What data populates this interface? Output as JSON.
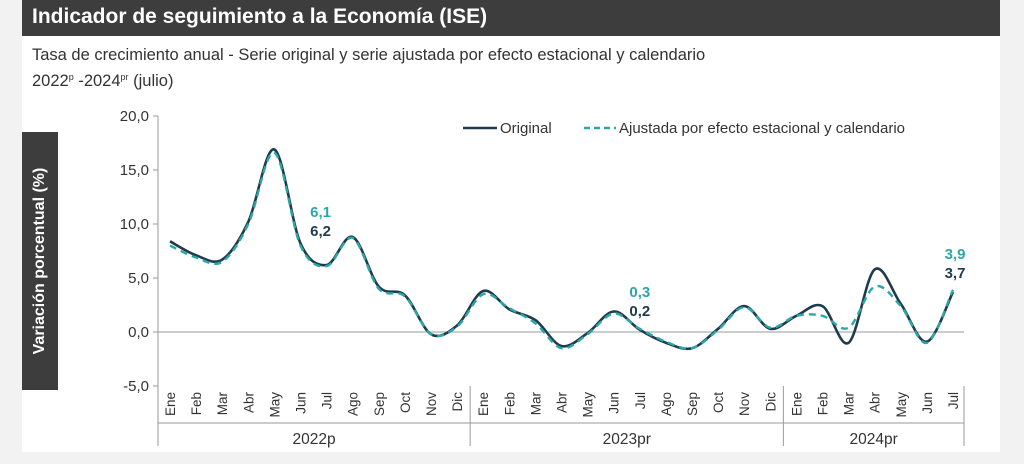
{
  "title": "Indicador de seguimiento a la Economía (ISE)",
  "subtitle": {
    "line1": "Tasa de crecimiento anual - Serie original y serie ajustada por efecto estacional y calendario",
    "line2_a": "2022",
    "line2_a_sup": "p",
    "line2_b": " -2024",
    "line2_b_sup": "pr",
    "line2_c": " (julio)"
  },
  "colors": {
    "original": "#1f3b4d",
    "adjusted": "#2aa8a8",
    "header": "#3d3d3d",
    "grid": "#9a9a9a"
  },
  "chart_data": {
    "type": "line",
    "ylabel": "Variación porcentual (%)",
    "ylim": [
      -5,
      20
    ],
    "yticks": [
      "20,0",
      "15,0",
      "10,0",
      "5,0",
      "0,0",
      "-5,0"
    ],
    "ytick_values": [
      20,
      15,
      10,
      5,
      0,
      -5
    ],
    "categories": [
      "Ene",
      "Feb",
      "Mar",
      "Abr",
      "May",
      "Jun",
      "Jul",
      "Ago",
      "Sep",
      "Oct",
      "Nov",
      "Dic",
      "Ene",
      "Feb",
      "Mar",
      "Abr",
      "May",
      "Jun",
      "Jul",
      "Ago",
      "Sep",
      "Oct",
      "Nov",
      "Dic",
      "Ene",
      "Feb",
      "Mar",
      "Abr",
      "May",
      "Jun",
      "Jul"
    ],
    "year_groups": [
      {
        "label": "2022p",
        "count": 12
      },
      {
        "label": "2023pr",
        "count": 12
      },
      {
        "label": "2024pr",
        "count": 7
      }
    ],
    "legend_position": "top-right",
    "series": [
      {
        "name": "Original",
        "style": "solid",
        "values": [
          8.4,
          7.1,
          6.7,
          10.2,
          16.9,
          8.2,
          6.2,
          8.8,
          4.2,
          3.4,
          -0.2,
          0.6,
          3.8,
          2.1,
          1.1,
          -1.3,
          -0.1,
          1.9,
          0.2,
          -1.0,
          -1.5,
          0.3,
          2.4,
          0.3,
          1.5,
          2.4,
          -1.0,
          5.8,
          2.6,
          -0.9,
          3.7
        ]
      },
      {
        "name": "Ajustada por efecto estacional y calendario",
        "style": "dashed",
        "values": [
          8.0,
          6.9,
          6.5,
          10.0,
          16.6,
          8.0,
          6.1,
          8.7,
          4.0,
          3.3,
          -0.2,
          0.5,
          3.5,
          2.2,
          0.8,
          -1.5,
          -0.2,
          1.7,
          0.3,
          -0.9,
          -1.5,
          0.2,
          2.3,
          0.4,
          1.5,
          1.5,
          0.4,
          4.2,
          2.4,
          -1.0,
          3.9
        ]
      }
    ],
    "annotations": [
      {
        "index": 6,
        "original": "6,2",
        "adjusted": "6,1"
      },
      {
        "index": 18,
        "original": "0,2",
        "adjusted": "0,3"
      },
      {
        "index": 30,
        "original": "3,7",
        "adjusted": "3,9"
      }
    ]
  }
}
